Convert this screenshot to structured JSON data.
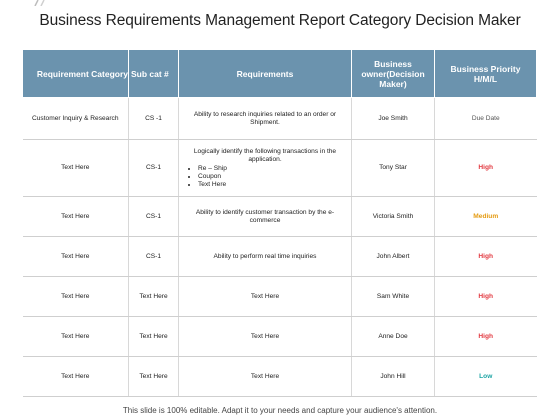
{
  "title": "Business Requirements Management Report Category Decision Maker",
  "headers": {
    "category": "Requirement Category",
    "subcat": "Sub cat #",
    "requirements": "Requirements",
    "owner": "Business owner(Decision Maker)",
    "priority": "Business Priority H/M/L"
  },
  "rows": [
    {
      "category": "Customer Inquiry & Research",
      "subcat": "CS -1",
      "requirement": "Ability to research inquiries related to an order or Shipment.",
      "owner": "Joe Smith",
      "priority": "Due Date"
    },
    {
      "category": "Text Here",
      "subcat": "CS-1",
      "requirement": "Logically identify the following transactions in the application.",
      "bullets": [
        "Re – Ship",
        "Coupon",
        "Text Here"
      ],
      "owner": "Tony Star",
      "priority": "High"
    },
    {
      "category": "Text Here",
      "subcat": "CS-1",
      "requirement": "Ability to identify customer transaction by the e-commerce",
      "owner": "Victoria Smith",
      "priority": "Medium"
    },
    {
      "category": "Text Here",
      "subcat": "CS-1",
      "requirement": "Ability to perform real time inquiries",
      "owner": "John Albert",
      "priority": "High"
    },
    {
      "category": "Text Here",
      "subcat": "Text Here",
      "requirement": "Text Here",
      "owner": "Sam White",
      "priority": "High"
    },
    {
      "category": "Text Here",
      "subcat": "Text Here",
      "requirement": "Text Here",
      "owner": "Anne Doe",
      "priority": "High"
    },
    {
      "category": "Text Here",
      "subcat": "Text Here",
      "requirement": "Text Here",
      "owner": "John Hill",
      "priority": "Low"
    }
  ],
  "priority_colors": {
    "High": "#e2383f",
    "Medium": "#e59b12",
    "Low": "#1aa3a3",
    "Due Date": "#555555"
  },
  "header_color": "#6b93ae",
  "footer": "This slide is 100% editable. Adapt it to your needs and capture your audience's attention."
}
